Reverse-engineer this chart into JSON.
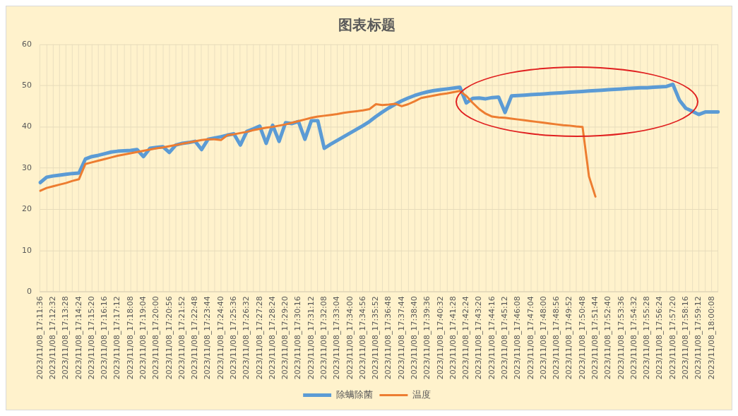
{
  "chart_data": {
    "type": "line",
    "title": "图表标题",
    "categories": [
      "2023/11/08_17:11:36",
      null,
      "2023/11/08_17:12:32",
      null,
      "2023/11/08_17:13:28",
      null,
      "2023/11/08_17:14:24",
      null,
      "2023/11/08_17:15:20",
      null,
      "2023/11/08_17:16:16",
      null,
      "2023/11/08_17:17:12",
      null,
      "2023/11/08_17:18:08",
      null,
      "2023/11/08_17:19:04",
      null,
      "2023/11/08_17:20:00",
      null,
      "2023/11/08_17:20:56",
      null,
      "2023/11/08_17:21:52",
      null,
      "2023/11/08_17:22:48",
      null,
      "2023/11/08_17:23:44",
      null,
      "2023/11/08_17:24:40",
      null,
      "2023/11/08_17:25:36",
      null,
      "2023/11/08_17:26:32",
      null,
      "2023/11/08_17:27:28",
      null,
      "2023/11/08_17:28:24",
      null,
      "2023/11/08_17:29:20",
      null,
      "2023/11/08_17:30:16",
      null,
      "2023/11/08_17:31:12",
      null,
      "2023/11/08_17:32:08",
      null,
      "2023/11/08_17:33:04",
      null,
      "2023/11/08_17:34:00",
      null,
      "2023/11/08_17:34:56",
      null,
      "2023/11/08_17:35:52",
      null,
      "2023/11/08_17:36:48",
      null,
      "2023/11/08_17:37:44",
      null,
      "2023/11/08_17:38:40",
      null,
      "2023/11/08_17:39:36",
      null,
      "2023/11/08_17:40:32",
      null,
      "2023/11/08_17:41:28",
      null,
      "2023/11/08_17:42:24",
      null,
      "2023/11/08_17:43:20",
      null,
      "2023/11/08_17:44:16",
      null,
      "2023/11/08_17:45:12",
      null,
      "2023/11/08_17:46:08",
      null,
      "2023/11/08_17:47:04",
      null,
      "2023/11/08_17:48:00",
      null,
      "2023/11/08_17:48:56",
      null,
      "2023/11/08_17:49:52",
      null,
      "2023/11/08_17:50:48",
      null,
      "2023/11/08_17:51:44",
      null,
      "2023/11/08_17:52:40",
      null,
      "2023/11/08_17:53:36",
      null,
      "2023/11/08_17:54:32",
      null,
      "2023/11/08_17:55:28",
      null,
      "2023/11/08_17:56:24",
      null,
      "2023/11/08_17:57:20",
      null,
      "2023/11/08_17:58:16",
      null,
      "2023/11/08_17:59:12",
      null,
      "2023/11/08_18:00:08",
      null
    ],
    "series": [
      {
        "name": "除螨除菌",
        "color": "#5b9bd5",
        "values": [
          26.5,
          27.8,
          28.1,
          28.3,
          28.5,
          28.7,
          28.8,
          32.2,
          32.8,
          33.1,
          33.5,
          33.9,
          34.1,
          34.2,
          34.3,
          34.5,
          32.8,
          34.8,
          35.0,
          35.2,
          33.8,
          35.6,
          36.0,
          36.2,
          36.5,
          34.5,
          37.0,
          37.3,
          37.6,
          38.0,
          38.3,
          35.6,
          38.9,
          39.5,
          40.2,
          36.0,
          40.4,
          36.5,
          41.0,
          40.8,
          41.3,
          37.0,
          41.5,
          41.5,
          34.8,
          35.8,
          36.7,
          37.6,
          38.5,
          39.4,
          40.3,
          41.3,
          42.5,
          43.6,
          44.6,
          45.5,
          46.3,
          47.0,
          47.6,
          48.1,
          48.5,
          48.8,
          49.0,
          49.2,
          49.4,
          49.6,
          45.8,
          46.9,
          47.0,
          46.8,
          47.1,
          47.2,
          43.5,
          47.5,
          47.6,
          47.7,
          47.8,
          47.9,
          48.0,
          48.1,
          48.2,
          48.3,
          48.4,
          48.5,
          48.6,
          48.7,
          48.8,
          48.9,
          49.0,
          49.1,
          49.2,
          49.3,
          49.4,
          49.5,
          49.5,
          49.6,
          49.7,
          49.8,
          50.3,
          46.5,
          44.5,
          43.8,
          43.0,
          43.6,
          43.6,
          43.6
        ]
      },
      {
        "name": "温度",
        "color": "#ed7d31",
        "values": [
          24.5,
          25.2,
          25.6,
          26.0,
          26.4,
          26.9,
          27.3,
          31.0,
          31.4,
          31.8,
          32.2,
          32.6,
          33.0,
          33.3,
          33.6,
          33.9,
          34.2,
          34.5,
          34.8,
          35.0,
          35.3,
          35.6,
          35.9,
          36.2,
          36.5,
          36.8,
          37.0,
          37.0,
          36.8,
          38.0,
          38.2,
          38.5,
          38.8,
          39.2,
          39.5,
          39.8,
          40.0,
          40.3,
          40.6,
          41.0,
          41.4,
          41.8,
          42.2,
          42.5,
          42.7,
          42.9,
          43.1,
          43.4,
          43.6,
          43.8,
          44.0,
          44.3,
          45.5,
          45.3,
          45.4,
          45.6,
          45.0,
          45.5,
          46.2,
          47.0,
          47.3,
          47.6,
          47.9,
          48.1,
          48.4,
          48.7,
          47.5,
          45.8,
          44.3,
          43.2,
          42.5,
          42.3,
          42.2,
          42.0,
          41.8,
          41.6,
          41.4,
          41.2,
          41.0,
          40.8,
          40.6,
          40.4,
          40.3,
          40.1,
          40.0,
          28.0,
          23.1,
          null,
          null,
          null,
          null,
          null,
          null,
          null,
          null,
          null,
          null,
          null,
          null,
          null,
          null,
          null,
          null,
          null,
          null,
          null
        ]
      }
    ],
    "ylim": [
      0,
      60
    ],
    "yticks": [
      0,
      10,
      20,
      30,
      40,
      50,
      60
    ],
    "grid": true,
    "legend": "bottom",
    "marker": "none",
    "line_style": "solid"
  }
}
